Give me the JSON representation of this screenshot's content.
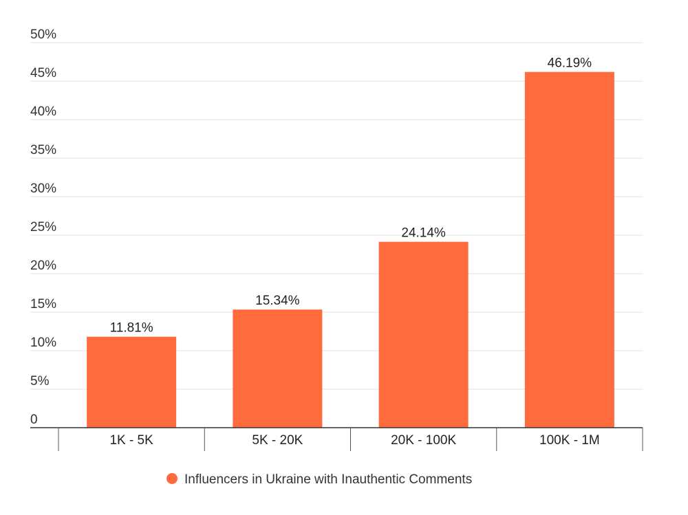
{
  "chart_data": {
    "type": "bar",
    "categories": [
      "1K - 5K",
      "5K - 20K",
      "20K - 100K",
      "100K - 1M"
    ],
    "series": [
      {
        "name": "Influencers in Ukraine with Inauthentic Comments",
        "values": [
          11.81,
          15.34,
          24.14,
          46.19
        ],
        "value_labels": [
          "11.81%",
          "15.34%",
          "24.14%",
          "46.19%"
        ],
        "color": "#ff6b3d"
      }
    ],
    "ylim": [
      0,
      50
    ],
    "yticks": [
      0,
      5,
      10,
      15,
      20,
      25,
      30,
      35,
      40,
      45,
      50
    ],
    "ytick_labels": [
      "0",
      "5%",
      "10%",
      "15%",
      "20%",
      "25%",
      "30%",
      "35%",
      "40%",
      "45%",
      "50%"
    ],
    "grid": true,
    "legend_position": "bottom-center",
    "gridline_color": "#e3e3e3",
    "axis_color": "#333333"
  }
}
